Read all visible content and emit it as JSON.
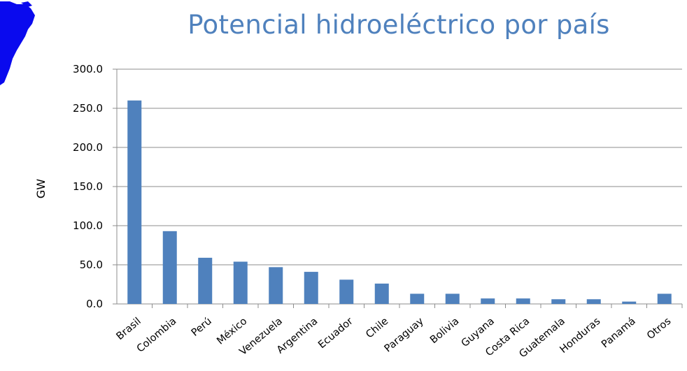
{
  "chart_data": {
    "type": "bar",
    "title": "Potencial hidroeléctrico por país",
    "ylabel": "GW",
    "xlabel": "",
    "ylim": [
      0,
      300
    ],
    "yticks": [
      0,
      50,
      100,
      150,
      200,
      250,
      300
    ],
    "ytick_labels": [
      "0.0",
      "50.0",
      "100.0",
      "150.0",
      "200.0",
      "250.0",
      "300.0"
    ],
    "grid": true,
    "categories": [
      "Brasil",
      "Colombia",
      "Perú",
      "México",
      "Venezuela",
      "Argentina",
      "Ecuador",
      "Chile",
      "Paraguay",
      "Bolivia",
      "Guyana",
      "Costa Rica",
      "Guatemala",
      "Honduras",
      "Panamá",
      "Otros"
    ],
    "values": [
      260,
      93,
      59,
      54,
      47,
      41,
      31,
      26,
      13,
      13,
      7,
      7,
      6,
      6,
      3,
      13
    ],
    "bar_color": "#4f81bd"
  }
}
